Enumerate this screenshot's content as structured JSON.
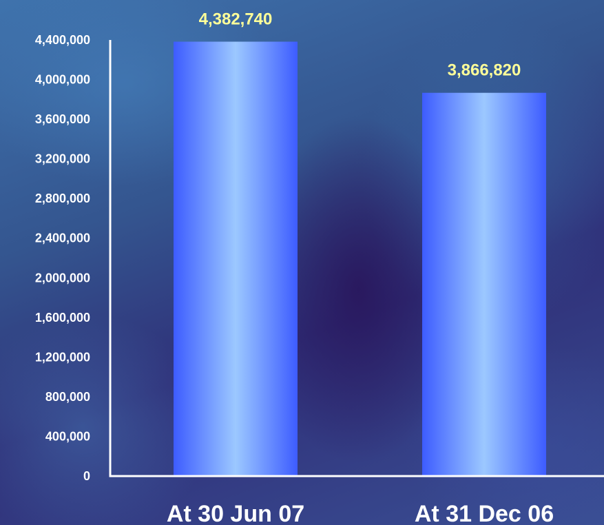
{
  "chart_data": {
    "type": "bar",
    "title": "",
    "xlabel": "",
    "ylabel": "",
    "categories": [
      "At 30 Jun 07",
      "At 31 Dec 06"
    ],
    "values": [
      4382740,
      3866820
    ],
    "value_labels": [
      "4,382,740",
      "3,866,820"
    ],
    "ylim": [
      0,
      4400000
    ],
    "yticks": [
      0,
      400000,
      800000,
      1200000,
      1600000,
      2000000,
      2400000,
      2800000,
      3200000,
      3600000,
      4000000,
      4400000
    ],
    "ytick_labels": [
      "0",
      "400,000",
      "800,000",
      "1,200,000",
      "1,600,000",
      "2,000,000",
      "2,400,000",
      "2,800,000",
      "3,200,000",
      "3,600,000",
      "4,000,000",
      "4,400,000"
    ],
    "grid": false,
    "legend": "none",
    "colors": {
      "bar_edge": "#3d5cff",
      "bar_center": "#9cc8ff",
      "value_label": "#ffff99",
      "axis": "#ffffff",
      "text": "#ffffff"
    }
  }
}
